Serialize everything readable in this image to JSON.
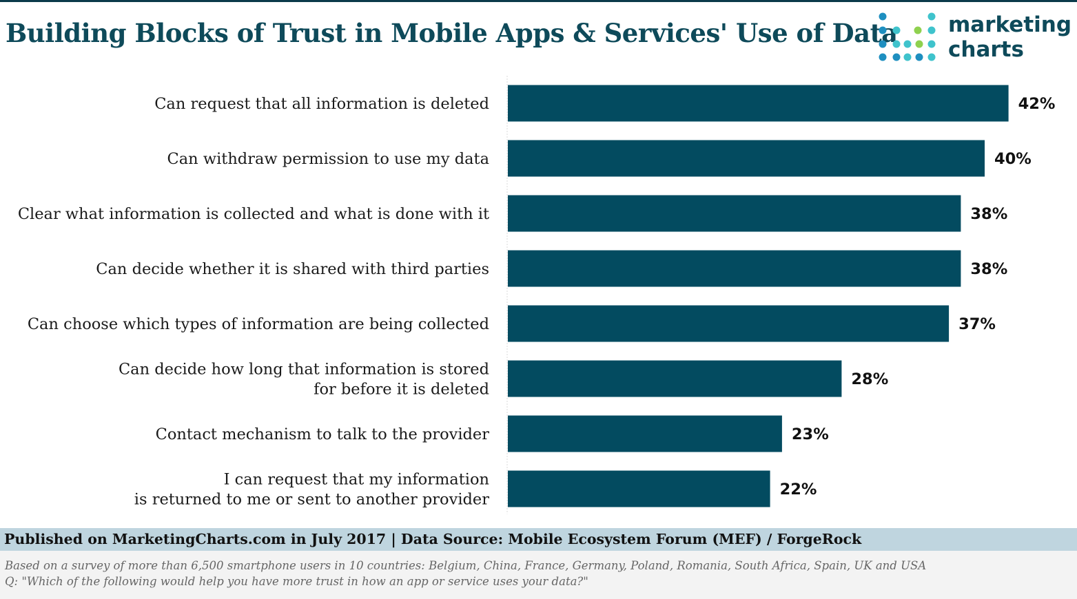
{
  "title": "Building Blocks of Trust in Mobile Apps & Services' Use of Data",
  "logo": {
    "line1": "marketing",
    "line2": "charts"
  },
  "colors": {
    "bar": "#034b60",
    "title": "#0e4a5a",
    "footer_band": "#bfd5df",
    "logo_dot_blue": "#1e8fc0",
    "logo_dot_teal": "#3fc3cc",
    "logo_dot_green": "#8fd14f"
  },
  "chart_data": {
    "type": "bar",
    "orientation": "horizontal",
    "title": "Building Blocks of Trust in Mobile Apps & Services' Use of Data",
    "xlabel": "",
    "ylabel": "",
    "xlim": [
      0,
      45
    ],
    "grid": false,
    "legend": "none",
    "value_suffix": "%",
    "categories": [
      [
        "Can request that all information is deleted"
      ],
      [
        "Can withdraw permission to use my data"
      ],
      [
        "Clear what information is collected and what is done with it"
      ],
      [
        "Can decide whether it is shared with third parties"
      ],
      [
        "Can choose which types of information are being collected"
      ],
      [
        "Can decide how long that information is stored",
        "for before it is deleted"
      ],
      [
        "Contact mechanism to talk to the provider"
      ],
      [
        "I can request that my information",
        "is returned to me or sent to another provider"
      ]
    ],
    "values": [
      42,
      40,
      38,
      38,
      37,
      28,
      23,
      22
    ]
  },
  "footer": {
    "published": "Published on MarketingCharts.com in July 2017 | Data Source: Mobile Ecosystem Forum (MEF) / ForgeRock",
    "note1": "Based on a survey of more than 6,500 smartphone users in 10 countries: Belgium, China, France, Germany, Poland, Romania, South Africa, Spain, UK and USA",
    "note2": "Q: \"Which of the following would help you have more trust in how an app or service uses your data?\""
  }
}
